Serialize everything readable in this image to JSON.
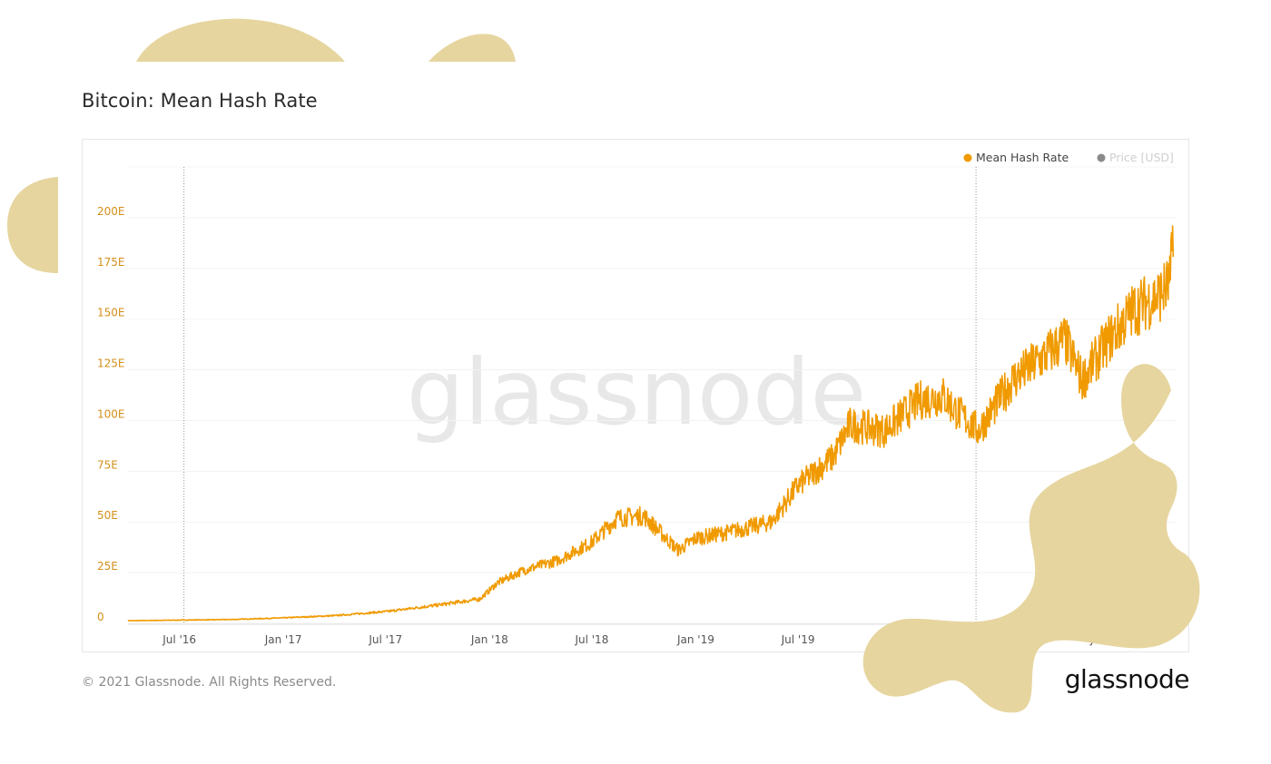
{
  "header": {
    "title": "Bitcoin: Mean Hash Rate"
  },
  "footer": {
    "copyright": "© 2021 Glassnode. All Rights Reserved.",
    "logo_text": "glassnode"
  },
  "watermark": "glassnode",
  "colors": {
    "series": "#f09a00",
    "axis_text": "#d48f1a",
    "price": "#8a8a8a",
    "blob": "#e6d59f"
  },
  "chart_data": {
    "type": "line",
    "title": "Bitcoin: Mean Hash Rate",
    "xlabel": "",
    "ylabel": "",
    "x_ticks": [
      "Jul '16",
      "Jan '17",
      "Jul '17",
      "Jan '18",
      "Jul '18",
      "Jan '19",
      "Jul '19",
      "Jan '21"
    ],
    "y_ticks": [
      "0",
      "25E",
      "50E",
      "75E",
      "100E",
      "125E",
      "150E",
      "175E",
      "200E"
    ],
    "ylim": [
      0,
      225
    ],
    "xlim": [
      "2016-04-01",
      "2021-05-01"
    ],
    "grid": true,
    "legend": {
      "position": "top-right",
      "entries": [
        {
          "name": "Mean Hash Rate",
          "color": "#f09a00",
          "active": true
        },
        {
          "name": "Price [USD]",
          "color": "#8a8a8a",
          "active": false
        }
      ]
    },
    "annotations": [
      {
        "type": "vertical-line",
        "x": "2016-07-09"
      },
      {
        "type": "vertical-line",
        "x": "2020-05-11"
      }
    ],
    "series": [
      {
        "name": "Mean Hash Rate",
        "points": [
          [
            "2016-04-01",
            1.3
          ],
          [
            "2016-07-01",
            1.6
          ],
          [
            "2016-10-01",
            1.9
          ],
          [
            "2017-01-01",
            2.7
          ],
          [
            "2017-04-01",
            3.8
          ],
          [
            "2017-07-01",
            5.8
          ],
          [
            "2017-10-01",
            9
          ],
          [
            "2017-12-15",
            12
          ],
          [
            "2018-01-15",
            20
          ],
          [
            "2018-03-01",
            26
          ],
          [
            "2018-05-01",
            31
          ],
          [
            "2018-07-01",
            40
          ],
          [
            "2018-08-15",
            52
          ],
          [
            "2018-10-01",
            53
          ],
          [
            "2018-12-01",
            36
          ],
          [
            "2019-01-01",
            42
          ],
          [
            "2019-03-01",
            45
          ],
          [
            "2019-05-15",
            50
          ],
          [
            "2019-07-01",
            68
          ],
          [
            "2019-09-01",
            82
          ],
          [
            "2019-10-01",
            98
          ],
          [
            "2019-12-01",
            95
          ],
          [
            "2020-02-01",
            110
          ],
          [
            "2020-03-15",
            112
          ],
          [
            "2020-04-01",
            106
          ],
          [
            "2020-05-15",
            95
          ],
          [
            "2020-07-15",
            120
          ],
          [
            "2020-09-01",
            130
          ],
          [
            "2020-10-15",
            140
          ],
          [
            "2020-11-15",
            120
          ],
          [
            "2021-01-01",
            140
          ],
          [
            "2021-02-15",
            155
          ],
          [
            "2021-04-01",
            162
          ],
          [
            "2021-04-20",
            168
          ],
          [
            "2021-04-25",
            198
          ]
        ]
      }
    ]
  }
}
